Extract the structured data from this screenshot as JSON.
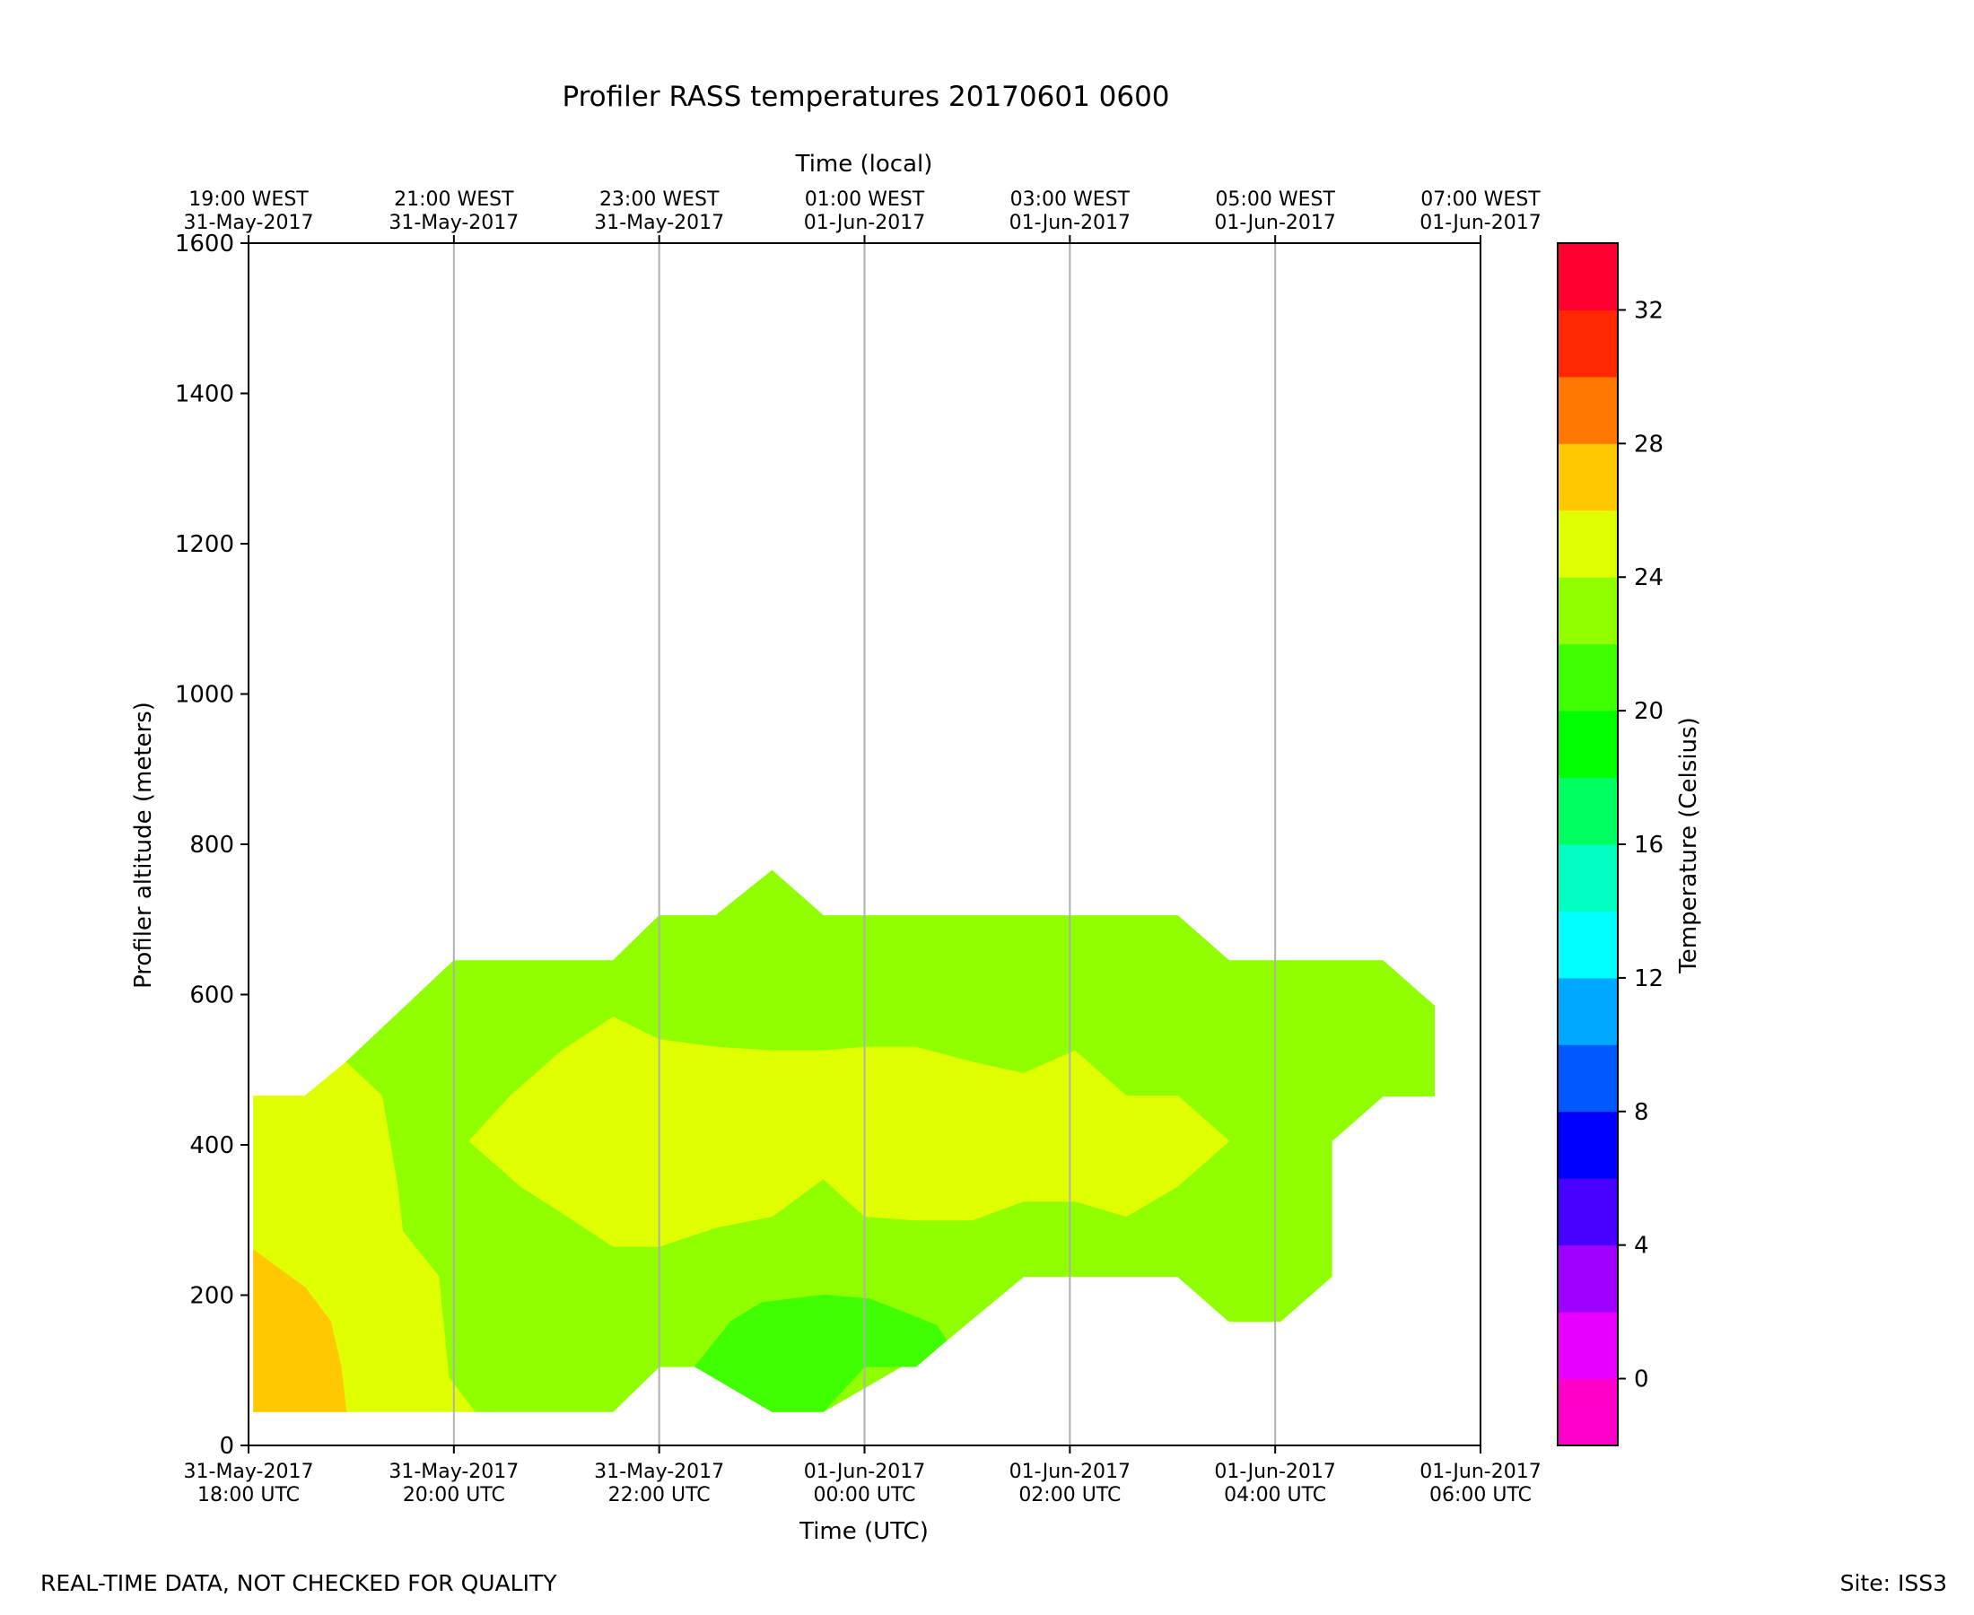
{
  "chart_data": {
    "type": "contour",
    "title": "Profiler RASS temperatures 20170601 0600",
    "xlabel": "Time (UTC)",
    "x2label": "Time (local)",
    "ylabel": "Profiler altitude (meters)",
    "ylim": [
      0,
      1600
    ],
    "yticks": [
      0,
      200,
      400,
      600,
      800,
      1000,
      1200,
      1400,
      1600
    ],
    "xlim_hours_from_start": [
      0,
      12
    ],
    "grid": "vertical-only",
    "x_ticks": [
      {
        "h": 0,
        "utc": [
          "31-May-2017",
          "18:00 UTC"
        ],
        "local": [
          "19:00 WEST",
          "31-May-2017"
        ]
      },
      {
        "h": 2,
        "utc": [
          "31-May-2017",
          "20:00 UTC"
        ],
        "local": [
          "21:00 WEST",
          "31-May-2017"
        ]
      },
      {
        "h": 4,
        "utc": [
          "31-May-2017",
          "22:00 UTC"
        ],
        "local": [
          "23:00 WEST",
          "31-May-2017"
        ]
      },
      {
        "h": 6,
        "utc": [
          "01-Jun-2017",
          "00:00 UTC"
        ],
        "local": [
          "01:00 WEST",
          "01-Jun-2017"
        ]
      },
      {
        "h": 8,
        "utc": [
          "01-Jun-2017",
          "02:00 UTC"
        ],
        "local": [
          "03:00 WEST",
          "01-Jun-2017"
        ]
      },
      {
        "h": 10,
        "utc": [
          "01-Jun-2017",
          "04:00 UTC"
        ],
        "local": [
          "05:00 WEST",
          "01-Jun-2017"
        ]
      },
      {
        "h": 12,
        "utc": [
          "01-Jun-2017",
          "06:00 UTC"
        ],
        "local": [
          "07:00 WEST",
          "01-Jun-2017"
        ]
      }
    ],
    "colorbar": {
      "label": "Temperature (Celsius)",
      "levels": [
        -2,
        0,
        2,
        4,
        6,
        8,
        10,
        12,
        14,
        16,
        18,
        20,
        22,
        24,
        26,
        28,
        30,
        32,
        34
      ],
      "ticks": [
        0,
        4,
        8,
        12,
        16,
        20,
        24,
        28,
        32
      ],
      "colors": [
        "#ff00c8",
        "#e800ff",
        "#a000ff",
        "#4800ff",
        "#0000ff",
        "#0058ff",
        "#00a8ff",
        "#00ffff",
        "#00ffc0",
        "#00ff60",
        "#00ff00",
        "#40ff00",
        "#90ff00",
        "#e0ff00",
        "#ffc800",
        "#ff7800",
        "#ff2800",
        "#ff0030"
      ]
    },
    "regions": [
      {
        "range_celsius": [
          22,
          24
        ],
        "color": "#90ff00",
        "outline_hours_m": [
          [
            0.95,
            510
          ],
          [
            2,
            645
          ],
          [
            3.55,
            645
          ],
          [
            4,
            705
          ],
          [
            4.55,
            705
          ],
          [
            5.1,
            765
          ],
          [
            5.6,
            705
          ],
          [
            9.05,
            705
          ],
          [
            9.55,
            645
          ],
          [
            11.05,
            645
          ],
          [
            11.55,
            585
          ],
          [
            11.55,
            465
          ],
          [
            11.05,
            465
          ],
          [
            10.55,
            405
          ],
          [
            10.55,
            225
          ],
          [
            10.05,
            165
          ],
          [
            9.55,
            165
          ],
          [
            9.05,
            225
          ],
          [
            7.55,
            225
          ],
          [
            6.8,
            140
          ],
          [
            5.6,
            45
          ],
          [
            5.1,
            45
          ],
          [
            4.35,
            105
          ],
          [
            4,
            105
          ],
          [
            3.55,
            45
          ],
          [
            2.2,
            45
          ],
          [
            1.95,
            90
          ],
          [
            1.85,
            225
          ],
          [
            1.5,
            285
          ],
          [
            1.45,
            345
          ],
          [
            1.3,
            465
          ]
        ]
      },
      {
        "range_celsius": [
          24,
          26
        ],
        "color": "#e0ff00",
        "outline_hours_m": [
          [
            0.05,
            465
          ],
          [
            0.55,
            465
          ],
          [
            0.95,
            510
          ],
          [
            1.3,
            465
          ],
          [
            1.45,
            345
          ],
          [
            1.5,
            285
          ],
          [
            1.85,
            225
          ],
          [
            1.95,
            90
          ],
          [
            2.2,
            45
          ],
          [
            0.05,
            45
          ]
        ]
      },
      {
        "range_celsius": [
          24,
          26
        ],
        "color": "#e0ff00",
        "outline_hours_m": [
          [
            2.15,
            405
          ],
          [
            2.55,
            465
          ],
          [
            3.05,
            525
          ],
          [
            3.55,
            570
          ],
          [
            4,
            540
          ],
          [
            4.55,
            530
          ],
          [
            5.1,
            525
          ],
          [
            5.6,
            525
          ],
          [
            6,
            530
          ],
          [
            6.5,
            530
          ],
          [
            7.05,
            510
          ],
          [
            7.55,
            495
          ],
          [
            8.05,
            525
          ],
          [
            8.55,
            465
          ],
          [
            9.05,
            465
          ],
          [
            9.55,
            405
          ],
          [
            9.05,
            345
          ],
          [
            8.55,
            305
          ],
          [
            8.05,
            325
          ],
          [
            7.55,
            325
          ],
          [
            7.05,
            300
          ],
          [
            6.5,
            300
          ],
          [
            6,
            305
          ],
          [
            5.6,
            355
          ],
          [
            5.1,
            305
          ],
          [
            4.55,
            290
          ],
          [
            4,
            265
          ],
          [
            3.55,
            265
          ],
          [
            3.05,
            310
          ],
          [
            2.65,
            345
          ]
        ]
      },
      {
        "range_celsius": [
          26,
          28
        ],
        "color": "#ffc800",
        "outline_hours_m": [
          [
            0.05,
            260
          ],
          [
            0.55,
            210
          ],
          [
            0.8,
            165
          ],
          [
            0.9,
            105
          ],
          [
            0.95,
            45
          ],
          [
            0.05,
            45
          ]
        ]
      },
      {
        "range_celsius": [
          20,
          22
        ],
        "color": "#40ff00",
        "outline_hours_m": [
          [
            4.35,
            105
          ],
          [
            4.7,
            165
          ],
          [
            5,
            190
          ],
          [
            5.6,
            200
          ],
          [
            6.05,
            195
          ],
          [
            6.7,
            160
          ],
          [
            6.8,
            140
          ],
          [
            6.5,
            105
          ],
          [
            6,
            105
          ],
          [
            5.6,
            45
          ],
          [
            5.1,
            45
          ]
        ]
      }
    ]
  },
  "footer": {
    "note": "REAL-TIME DATA, NOT CHECKED FOR QUALITY",
    "site": "Site: ISS3"
  }
}
